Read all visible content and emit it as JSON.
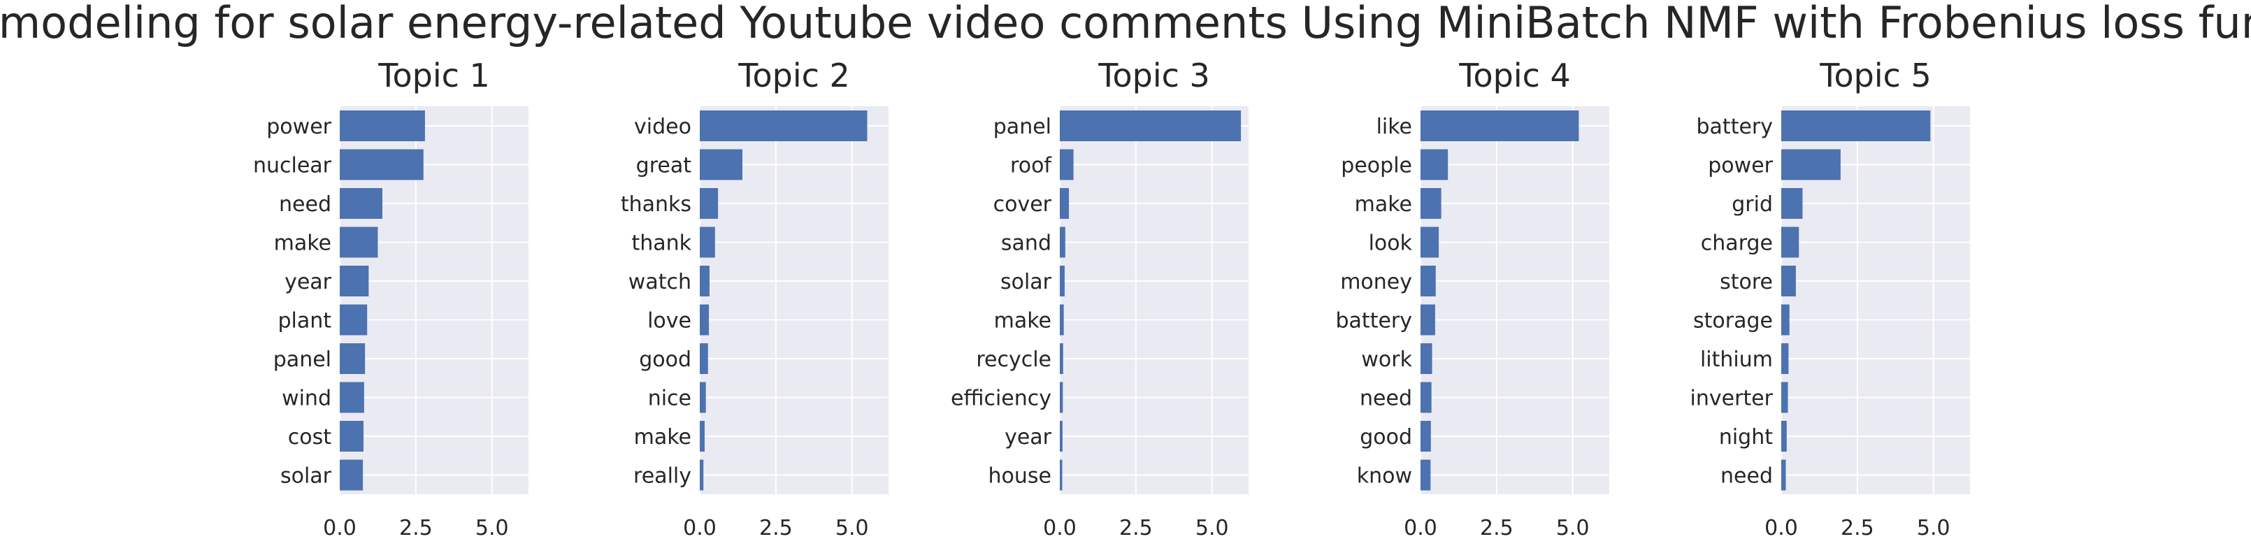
{
  "chart_data": {
    "type": "bar",
    "orientation": "horizontal",
    "title": "Topic modeling for solar energy-related Youtube video comments Using MiniBatch NMF with Frobenius loss function",
    "bar_color": "#4c72b0",
    "background_color": "#eaeaf2",
    "grid": true,
    "xlim": [
      0,
      6.2
    ],
    "xticks": [
      0,
      2.5,
      5
    ],
    "xtick_labels": [
      "0.0",
      "2.5",
      "5.0"
    ],
    "panels": [
      {
        "title": "Topic 1",
        "categories": [
          "power",
          "nuclear",
          "need",
          "make",
          "year",
          "plant",
          "panel",
          "wind",
          "cost",
          "solar"
        ],
        "values": [
          2.8,
          2.75,
          1.4,
          1.25,
          0.95,
          0.9,
          0.83,
          0.8,
          0.78,
          0.76
        ]
      },
      {
        "title": "Topic 2",
        "categories": [
          "video",
          "great",
          "thanks",
          "thank",
          "watch",
          "love",
          "good",
          "nice",
          "make",
          "really"
        ],
        "values": [
          5.5,
          1.4,
          0.6,
          0.5,
          0.32,
          0.3,
          0.27,
          0.2,
          0.16,
          0.12
        ]
      },
      {
        "title": "Topic 3",
        "categories": [
          "panel",
          "roof",
          "cover",
          "sand",
          "solar",
          "make",
          "recycle",
          "efficiency",
          "year",
          "house"
        ],
        "values": [
          5.95,
          0.45,
          0.3,
          0.18,
          0.16,
          0.13,
          0.11,
          0.1,
          0.09,
          0.08
        ]
      },
      {
        "title": "Topic 4",
        "categories": [
          "like",
          "people",
          "make",
          "look",
          "money",
          "battery",
          "work",
          "need",
          "good",
          "know"
        ],
        "values": [
          5.2,
          0.9,
          0.68,
          0.6,
          0.5,
          0.48,
          0.38,
          0.36,
          0.34,
          0.33
        ]
      },
      {
        "title": "Topic 5",
        "categories": [
          "battery",
          "power",
          "grid",
          "charge",
          "store",
          "storage",
          "lithium",
          "inverter",
          "night",
          "need"
        ],
        "values": [
          4.9,
          1.95,
          0.7,
          0.58,
          0.48,
          0.27,
          0.24,
          0.22,
          0.18,
          0.15
        ]
      }
    ]
  }
}
